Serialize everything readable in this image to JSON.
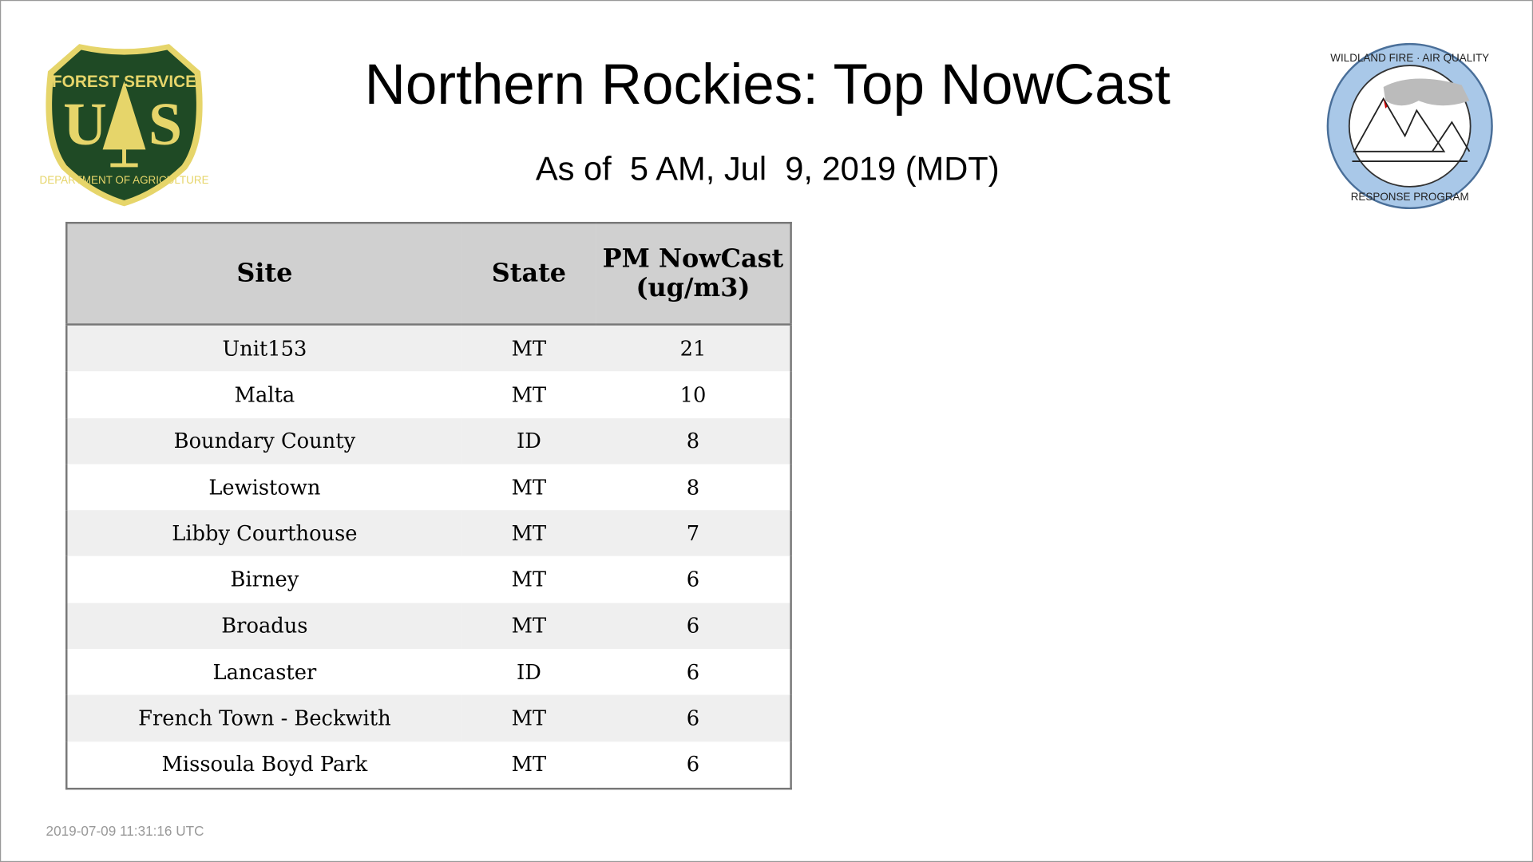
{
  "header": {
    "title": "Northern Rockies: Top NowCast",
    "subtitle": "As of  5 AM, Jul  9, 2019 (MDT)"
  },
  "logos": {
    "left": "Forest Service US Department of Agriculture",
    "right": "Wildland Fire Air Quality Response Program"
  },
  "table": {
    "columns": [
      "Site",
      "State",
      "PM NowCast (ug/m3)"
    ],
    "rows": [
      {
        "site": "Unit153",
        "state": "MT",
        "value": "21"
      },
      {
        "site": "Malta",
        "state": "MT",
        "value": "10"
      },
      {
        "site": "Boundary County",
        "state": "ID",
        "value": "8"
      },
      {
        "site": "Lewistown",
        "state": "MT",
        "value": "8"
      },
      {
        "site": "Libby Courthouse",
        "state": "MT",
        "value": "7"
      },
      {
        "site": "Birney",
        "state": "MT",
        "value": "6"
      },
      {
        "site": "Broadus",
        "state": "MT",
        "value": "6"
      },
      {
        "site": "Lancaster",
        "state": "ID",
        "value": "6"
      },
      {
        "site": "French Town - Beckwith",
        "state": "MT",
        "value": "6"
      },
      {
        "site": "Missoula Boyd Park",
        "state": "MT",
        "value": "6"
      }
    ]
  },
  "footer": {
    "timestamp": "2019-07-09 11:31:16 UTC"
  },
  "colors": {
    "header_bg": "#d0d0d0",
    "stripe": "#efefef",
    "usfs_green": "#1f4a25",
    "usfs_yellow": "#e6d56a",
    "wfaq_blue": "#a9c8e8"
  }
}
